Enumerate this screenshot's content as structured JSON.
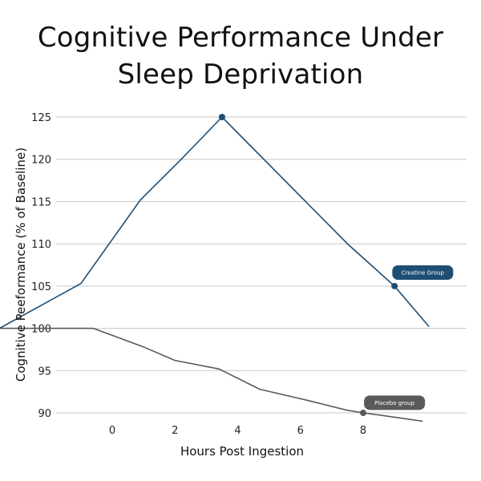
{
  "chart_data": {
    "type": "line",
    "title_lines": [
      "Cognitive Performance Under",
      "Sleep Deprivation"
    ],
    "xlabel": "Hours Post Ingestion",
    "ylabel": "Cognitive Peeformance (% of Baseline)",
    "x_ticks": [
      0,
      2,
      4,
      6,
      8
    ],
    "y_ticks": [
      90,
      95,
      100,
      105,
      110,
      115,
      120,
      125
    ],
    "xlim": [
      -3.6,
      10.5
    ],
    "ylim": [
      88,
      126
    ],
    "grid": "horizontal",
    "series": [
      {
        "name": "Creatine Group",
        "color": "#1f4e74",
        "x": [
          -3.6,
          -1.0,
          0.9,
          2.2,
          3.5,
          5.5,
          7.5,
          9.0,
          10.1
        ],
        "y": [
          100,
          105.3,
          115.2,
          120,
          125,
          117.5,
          110,
          105,
          100.2
        ],
        "marker_index": [
          4,
          7
        ],
        "label_at": {
          "x": 9.9,
          "y": 106.6
        }
      },
      {
        "name": "Placebo group",
        "color": "#5a5a5a",
        "x": [
          -3.6,
          -0.6,
          1.0,
          2.0,
          3.4,
          4.7,
          6.2,
          7.5,
          8.0,
          8.6,
          9.9
        ],
        "y": [
          100,
          100,
          97.8,
          96.2,
          95.2,
          92.8,
          91.5,
          90.3,
          90,
          89.7,
          89
        ],
        "marker_index": [
          8
        ],
        "label_at": {
          "x": 9.0,
          "y": 91.2
        }
      }
    ]
  }
}
